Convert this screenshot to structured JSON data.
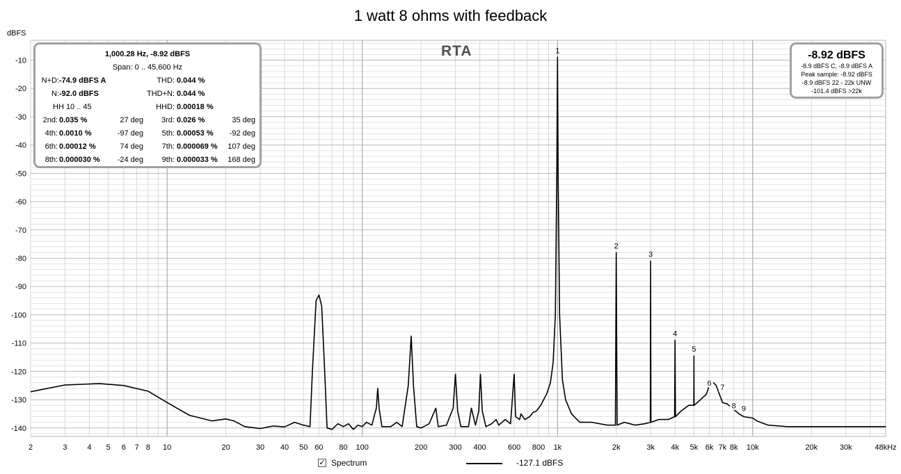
{
  "chart_data": {
    "type": "line",
    "title": "1 watt 8 ohms with feedback",
    "ylabel": "dBFS",
    "xlabel": "",
    "x_scale": "log",
    "xlim": [
      2,
      48000
    ],
    "ylim": [
      -143,
      -3
    ],
    "x_ticks": [
      {
        "v": 2,
        "t": "2"
      },
      {
        "v": 3,
        "t": "3"
      },
      {
        "v": 4,
        "t": "4"
      },
      {
        "v": 5,
        "t": "5"
      },
      {
        "v": 6,
        "t": "6"
      },
      {
        "v": 7,
        "t": "7"
      },
      {
        "v": 8,
        "t": "8"
      },
      {
        "v": 10,
        "t": "10"
      },
      {
        "v": 20,
        "t": "20"
      },
      {
        "v": 30,
        "t": "30"
      },
      {
        "v": 40,
        "t": "40"
      },
      {
        "v": 50,
        "t": "50"
      },
      {
        "v": 60,
        "t": "60"
      },
      {
        "v": 80,
        "t": "80"
      },
      {
        "v": 100,
        "t": "100"
      },
      {
        "v": 200,
        "t": "200"
      },
      {
        "v": 300,
        "t": "300"
      },
      {
        "v": 400,
        "t": "400"
      },
      {
        "v": 600,
        "t": "600"
      },
      {
        "v": 800,
        "t": "800"
      },
      {
        "v": 1000,
        "t": "1k"
      },
      {
        "v": 2000,
        "t": "2k"
      },
      {
        "v": 3000,
        "t": "3k"
      },
      {
        "v": 4000,
        "t": "4k"
      },
      {
        "v": 5000,
        "t": "5k"
      },
      {
        "v": 6000,
        "t": "6k"
      },
      {
        "v": 7000,
        "t": "7k"
      },
      {
        "v": 8000,
        "t": "8k"
      },
      {
        "v": 10000,
        "t": "10k"
      },
      {
        "v": 20000,
        "t": "20k"
      },
      {
        "v": 30000,
        "t": "30k"
      },
      {
        "v": 48000,
        "t": "48kHz"
      }
    ],
    "y_ticks": [
      -10,
      -20,
      -30,
      -40,
      -50,
      -60,
      -70,
      -80,
      -90,
      -100,
      -110,
      -120,
      -130,
      -140
    ],
    "grid": true,
    "series": [
      {
        "color": "#000000",
        "points": [
          [
            2,
            -127.2
          ],
          [
            3,
            -124.8
          ],
          [
            4.5,
            -124.3
          ],
          [
            6,
            -125
          ],
          [
            8,
            -127
          ],
          [
            10,
            -131
          ],
          [
            13,
            -135.5
          ],
          [
            17,
            -137.5
          ],
          [
            20,
            -136.8
          ],
          [
            22,
            -137.5
          ],
          [
            25,
            -139.5
          ],
          [
            30,
            -140.2
          ],
          [
            35,
            -139.3
          ],
          [
            40,
            -139.6
          ],
          [
            45,
            -138
          ],
          [
            50,
            -139
          ],
          [
            54,
            -139.5
          ],
          [
            55.5,
            -120
          ],
          [
            58,
            -95
          ],
          [
            60,
            -93
          ],
          [
            62,
            -97
          ],
          [
            64,
            -118
          ],
          [
            66,
            -140
          ],
          [
            70,
            -140.5
          ],
          [
            75,
            -138.5
          ],
          [
            80,
            -139.5
          ],
          [
            85,
            -138.5
          ],
          [
            90,
            -140.5
          ],
          [
            95,
            -139
          ],
          [
            100,
            -139.5
          ],
          [
            105,
            -138
          ],
          [
            112,
            -139
          ],
          [
            118,
            -133
          ],
          [
            120,
            -126
          ],
          [
            122,
            -133
          ],
          [
            126,
            -139.5
          ],
          [
            140,
            -139.5
          ],
          [
            150,
            -138
          ],
          [
            160,
            -139.5
          ],
          [
            172,
            -125
          ],
          [
            178,
            -107.5
          ],
          [
            183,
            -125
          ],
          [
            190,
            -139.5
          ],
          [
            200,
            -140
          ],
          [
            220,
            -138.5
          ],
          [
            238,
            -133
          ],
          [
            245,
            -139.5
          ],
          [
            270,
            -139
          ],
          [
            292,
            -133
          ],
          [
            300,
            -121
          ],
          [
            308,
            -134
          ],
          [
            320,
            -139.5
          ],
          [
            350,
            -139.5
          ],
          [
            362,
            -133
          ],
          [
            380,
            -139
          ],
          [
            395,
            -134
          ],
          [
            403,
            -121
          ],
          [
            412,
            -134
          ],
          [
            430,
            -139.5
          ],
          [
            460,
            -138.5
          ],
          [
            485,
            -137
          ],
          [
            500,
            -139
          ],
          [
            540,
            -137
          ],
          [
            575,
            -138.5
          ],
          [
            600,
            -121
          ],
          [
            610,
            -136
          ],
          [
            640,
            -137
          ],
          [
            650,
            -135
          ],
          [
            680,
            -137
          ],
          [
            720,
            -136
          ],
          [
            750,
            -134.5
          ],
          [
            780,
            -134
          ],
          [
            820,
            -132
          ],
          [
            880,
            -128
          ],
          [
            920,
            -124
          ],
          [
            950,
            -117
          ],
          [
            975,
            -100
          ],
          [
            992,
            -50
          ],
          [
            1000,
            -9
          ],
          [
            1008,
            -50
          ],
          [
            1025,
            -100
          ],
          [
            1060,
            -123
          ],
          [
            1100,
            -130
          ],
          [
            1180,
            -135
          ],
          [
            1300,
            -138
          ],
          [
            1500,
            -138
          ],
          [
            1800,
            -139
          ],
          [
            1980,
            -139
          ],
          [
            2000,
            -78
          ],
          [
            2020,
            -139
          ],
          [
            2200,
            -138
          ],
          [
            2500,
            -139
          ],
          [
            2800,
            -138.5
          ],
          [
            2990,
            -138
          ],
          [
            3000,
            -81
          ],
          [
            3010,
            -138
          ],
          [
            3300,
            -137
          ],
          [
            3700,
            -137
          ],
          [
            3980,
            -136
          ],
          [
            4000,
            -109
          ],
          [
            4020,
            -136
          ],
          [
            4300,
            -134
          ],
          [
            4700,
            -132
          ],
          [
            4990,
            -132
          ],
          [
            5000,
            -114.5
          ],
          [
            5010,
            -132
          ],
          [
            5400,
            -130
          ],
          [
            5800,
            -128
          ],
          [
            6100,
            -123
          ],
          [
            6500,
            -125
          ],
          [
            7000,
            -131
          ],
          [
            7400,
            -131.5
          ],
          [
            8000,
            -133.5
          ],
          [
            8500,
            -135
          ],
          [
            9000,
            -136
          ],
          [
            10000,
            -136.5
          ],
          [
            10500,
            -137.5
          ],
          [
            12000,
            -139
          ],
          [
            15000,
            -139.5
          ],
          [
            20000,
            -139.5
          ],
          [
            25000,
            -139.5
          ],
          [
            30000,
            -139.5
          ],
          [
            40000,
            -139.5
          ],
          [
            48000,
            -139.5
          ]
        ]
      }
    ],
    "annotations": [
      {
        "x": 1000,
        "y": -9,
        "label": "1"
      },
      {
        "x": 2000,
        "y": -78,
        "label": "2"
      },
      {
        "x": 3000,
        "y": -81,
        "label": "3"
      },
      {
        "x": 4000,
        "y": -109,
        "label": "4"
      },
      {
        "x": 5000,
        "y": -114.5,
        "label": "5"
      },
      {
        "x": 6000,
        "y": -126.5,
        "label": "6"
      },
      {
        "x": 7000,
        "y": -128,
        "label": "7"
      },
      {
        "x": 8000,
        "y": -134.5,
        "label": "8"
      },
      {
        "x": 9000,
        "y": -135.5,
        "label": "9"
      }
    ]
  },
  "rta_label": "RTA",
  "info": {
    "line1": "1,000.28 Hz, -8.92 dBFS",
    "line2": "Span: 0 .. 45,600 Hz",
    "nd_label": "N+D:",
    "nd_value": "-74.9 dBFS A",
    "thd_label": "THD:",
    "thd_value": "0.044 %",
    "n_label": "N:",
    "n_value": "-92.0 dBFS",
    "thdn_label": "THD+N:",
    "thdn_value": "0.044 %",
    "hh_label": "HH 10 .. 45",
    "hhd_label": "HHD:",
    "hhd_value": "0.00018 %",
    "harmonics": [
      {
        "l1": "2nd:",
        "v1": "0.035 %",
        "d1": "27 deg",
        "l2": "3rd:",
        "v2": "0.026 %",
        "d2": "35 deg"
      },
      {
        "l1": "4th:",
        "v1": "0.0010 %",
        "d1": "-97 deg",
        "l2": "5th:",
        "v2": "0.00053 %",
        "d2": "-92 deg"
      },
      {
        "l1": "6th:",
        "v1": "0.00012 %",
        "d1": "74 deg",
        "l2": "7th:",
        "v2": "0.000069 %",
        "d2": "107 deg"
      },
      {
        "l1": "8th:",
        "v1": "0.000030 %",
        "d1": "-24 deg",
        "l2": "9th:",
        "v2": "0.000033 %",
        "d2": "168 deg"
      }
    ]
  },
  "level": {
    "main": "-8.92 dBFS",
    "line1": "-8.9 dBFS C, -8.9 dBFS A",
    "line2": "Peak sample: -8.92 dBFS",
    "line3": "-8.9 dBFS 22 - 22k UNW",
    "line4": "-101.4 dBFS >22k"
  },
  "legend": {
    "checkbox_mark": "✓",
    "label": "Spectrum",
    "value": "-127.1 dBFS"
  }
}
